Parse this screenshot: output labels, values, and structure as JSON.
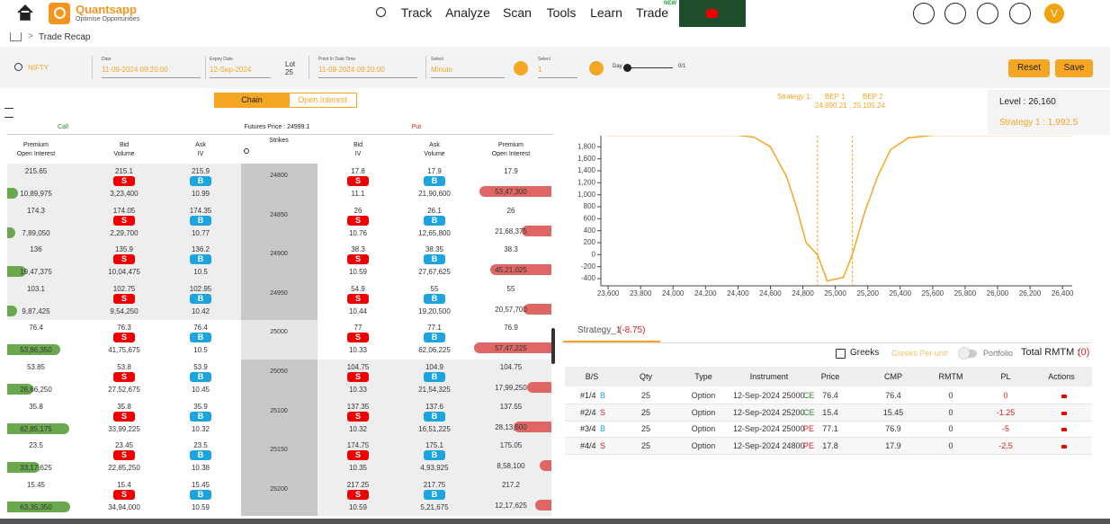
{
  "nav": {
    "brand": "Quantsapp",
    "tagline": "Optimise Opportunities",
    "items": [
      "Track",
      "Analyze",
      "Scan",
      "Tools",
      "Learn",
      "Trade"
    ],
    "new_badge": "NEW",
    "avatar": "V"
  },
  "breadcrumb": "Trade Recap",
  "controls": {
    "symbol": "NIFTY",
    "date_label": "Date",
    "date": "11-09-2024 09:20:00",
    "expiry_label": "Expiry Date",
    "expiry": "12-Sep-2024",
    "lot_label": "Lot",
    "lot": "25",
    "pit_label": "Point In Date Time",
    "pit": "11-09-2024 09:20:00",
    "interval_label": "Select",
    "interval": "Minute",
    "step_label": "Select",
    "step": "1",
    "day_label": "Day",
    "day_count": "0/1",
    "reset": "Reset",
    "save": "Save"
  },
  "tabs": [
    "Chain",
    "Open Interest"
  ],
  "chain": {
    "call_label": "Call",
    "futures_price": "Futures Price : 24999.1",
    "put_label": "Put",
    "headers": [
      [
        "Premium",
        "Open Interest"
      ],
      [
        "Bid",
        "Volume"
      ],
      [
        "Ask",
        "IV"
      ],
      [
        "Strikes"
      ],
      [
        "Bid",
        "IV"
      ],
      [
        "Ask",
        "Volume"
      ],
      [
        "Premium",
        "Open Interest"
      ]
    ],
    "sell": "S",
    "buy": "B",
    "rows": [
      [
        "24800",
        "215.65",
        "10,89,975",
        "215.1",
        "3,23,400",
        "215.9",
        "10.99",
        "17.8",
        "11.1",
        "17.9",
        "21,90,600",
        "17.9",
        "53,47,300"
      ],
      [
        "24850",
        "174.3",
        "7,89,050",
        "174.05",
        "2,29,700",
        "174.35",
        "10.77",
        "26",
        "10.76",
        "26.1",
        "12,65,800",
        "26",
        "21,68,375"
      ],
      [
        "24900",
        "136",
        "19,47,375",
        "135.9",
        "10,04,475",
        "136.2",
        "10.5",
        "38.3",
        "10.59",
        "38.35",
        "27,67,625",
        "38.3",
        "45,21,025"
      ],
      [
        "24950",
        "103.1",
        "9,87,425",
        "102.75",
        "9,54,250",
        "102.95",
        "10.42",
        "54.9",
        "10.44",
        "55",
        "19,20,500",
        "55",
        "20,57,700"
      ],
      [
        "25000",
        "76.4",
        "53,86,350",
        "76.3",
        "41,75,675",
        "76.4",
        "10.5",
        "77",
        "10.33",
        "77.1",
        "62,06,225",
        "76.9",
        "57,47,225"
      ],
      [
        "25050",
        "53.85",
        "26,66,250",
        "53.8",
        "27,52,675",
        "53.9",
        "10.45",
        "104.75",
        "10.33",
        "104.9",
        "21,54,325",
        "104.75",
        "17,99,250"
      ],
      [
        "25100",
        "35.8",
        "62,85,175",
        "35.8",
        "33,99,225",
        "35.9",
        "10.32",
        "137.35",
        "10.32",
        "137.6",
        "16,51,225",
        "137.55",
        "28,13,500"
      ],
      [
        "25150",
        "23.5",
        "33,17,625",
        "23.45",
        "22,85,250",
        "23.5",
        "10.38",
        "174.75",
        "10.35",
        "175.1",
        "4,93,925",
        "175.05",
        "8,58,100"
      ],
      [
        "25200",
        "15.45",
        "63,35,350",
        "15.4",
        "34,94,000",
        "15.45",
        "10.59",
        "217.25",
        "10.59",
        "217.75",
        "5,21,675",
        "217.2",
        "12,17,625"
      ]
    ]
  },
  "payoff": {
    "strategy_label": "Strategy 1:",
    "bep1": "BEP 1",
    "bep2": "BEP 2",
    "bep_values": "24,890.21 , 25,105.24",
    "tooltip_level": "Level : 26,160",
    "tooltip_value": "Strategy 1 : 1,992.5"
  },
  "chart_data": {
    "type": "line",
    "color": "#f5a623",
    "x": [
      23600,
      24400,
      24500,
      24600,
      24700,
      24760,
      24820,
      24890,
      24950,
      25050,
      25105,
      25180,
      25260,
      25340,
      25450,
      25600,
      26460
    ],
    "values": [
      1992.5,
      1992.5,
      1960,
      1800,
      1300,
      800,
      200,
      0,
      -440,
      -380,
      0,
      700,
      1300,
      1750,
      1950,
      1992.5,
      1992.5
    ],
    "bep_lines": [
      24890.21,
      25105.24
    ],
    "xlim": [
      23555,
      26460
    ],
    "ylim": [
      -520,
      1985
    ],
    "xticks": [
      {
        "value": 23600,
        "label": "23,600"
      },
      {
        "value": 23800,
        "label": "23,800"
      },
      {
        "value": 24000,
        "label": "24,000"
      },
      {
        "value": 24200,
        "label": "24,200"
      },
      {
        "value": 24400,
        "label": "24,400"
      },
      {
        "value": 24600,
        "label": "24,600"
      },
      {
        "value": 24800,
        "label": "24,800"
      },
      {
        "value": 25000,
        "label": "25,000"
      },
      {
        "value": 25200,
        "label": "25,200"
      },
      {
        "value": 25400,
        "label": "25,400"
      },
      {
        "value": 25600,
        "label": "25,600"
      },
      {
        "value": 25800,
        "label": "25,800"
      },
      {
        "value": 26000,
        "label": "26,000"
      },
      {
        "value": 26200,
        "label": "26,200"
      },
      {
        "value": 26400,
        "label": "26,400"
      }
    ],
    "yticks": [
      -400,
      -200,
      0,
      200,
      400,
      600,
      800,
      {
        "value": 1000,
        "label": "1,000"
      },
      {
        "value": 1200,
        "label": "1,200"
      },
      {
        "value": 1400,
        "label": "1,400"
      },
      {
        "value": 1600,
        "label": "1,600"
      },
      {
        "value": 1800,
        "label": "1,800"
      }
    ]
  },
  "positions": {
    "tab": "Strategy_1",
    "tab_pnl": "(-8.75)",
    "greeks": "Greeks",
    "per_unit": "Greeks Per unit",
    "portfolio": "Portfolio",
    "total_label": "Total RMTM :",
    "total_value": "(0)",
    "headers": [
      "B/S",
      "Qty",
      "Type",
      "Instrument",
      "Price",
      "CMP",
      "RMTM",
      "PL",
      "Actions"
    ],
    "rows": [
      [
        "#1/4",
        "B",
        "25",
        "Option",
        "12-Sep-2024 25000",
        "CE",
        "76.4",
        "76.4",
        "0",
        "0"
      ],
      [
        "#2/4",
        "S",
        "25",
        "Option",
        "12-Sep-2024 25200",
        "CE",
        "15.4",
        "15.45",
        "0",
        "-1.25"
      ],
      [
        "#3/4",
        "B",
        "25",
        "Option",
        "12-Sep-2024 25000",
        "PE",
        "77.1",
        "76.9",
        "0",
        "-5"
      ],
      [
        "#4/4",
        "S",
        "25",
        "Option",
        "12-Sep-2024 24800",
        "PE",
        "17.8",
        "17.9",
        "0",
        "-2.5"
      ]
    ]
  }
}
